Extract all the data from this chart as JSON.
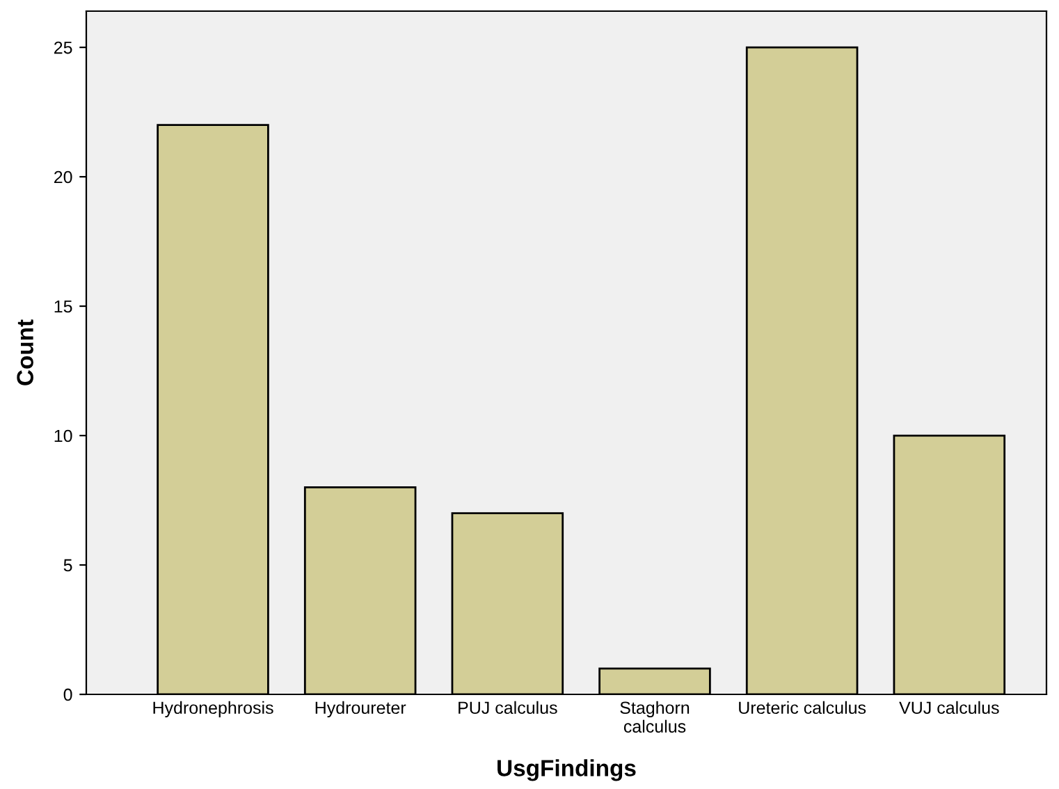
{
  "chart_data": {
    "type": "bar",
    "xlabel": "UsgFindings",
    "ylabel": "Count",
    "categories": [
      "Hydronephrosis",
      "Hydroureter",
      "PUJ calculus",
      "Staghorn\ncalculus",
      "Ureteric calculus",
      "VUJ calculus"
    ],
    "values": [
      22,
      8,
      7,
      1,
      25,
      10
    ],
    "color": "#d3ce97",
    "ylim": [
      0,
      26.4
    ],
    "yticks": [
      0,
      5,
      10,
      15,
      20,
      25
    ],
    "grid": false,
    "legend": false
  }
}
